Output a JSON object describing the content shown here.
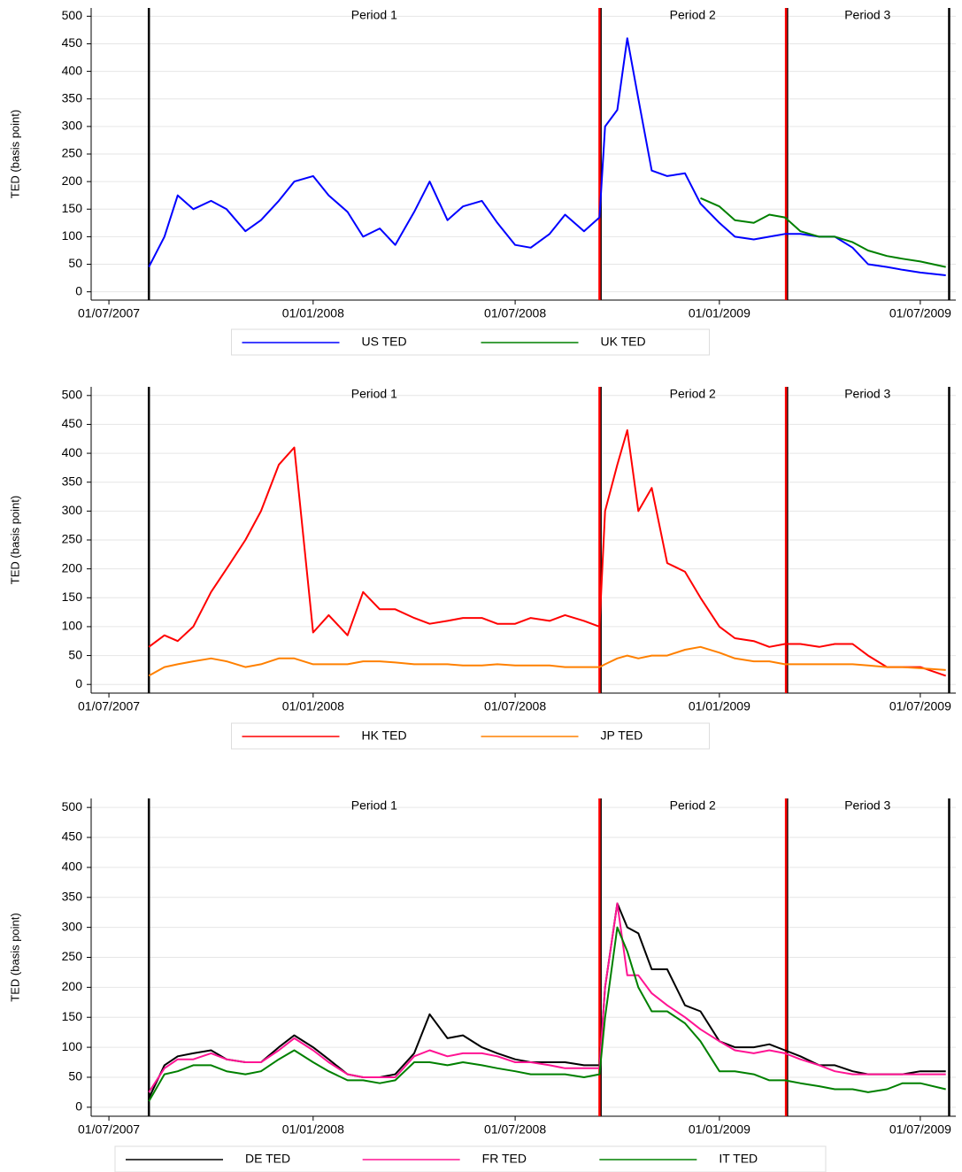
{
  "chart_data": [
    {
      "type": "line",
      "ylabel": "TED (basis point)",
      "x": [
        "2007-08-06",
        "2007-08-20",
        "2007-09-01",
        "2007-09-15",
        "2007-10-01",
        "2007-10-15",
        "2007-11-01",
        "2007-11-15",
        "2007-12-01",
        "2007-12-15",
        "2008-01-01",
        "2008-01-15",
        "2008-02-01",
        "2008-02-15",
        "2008-03-01",
        "2008-03-15",
        "2008-04-01",
        "2008-04-15",
        "2008-05-01",
        "2008-05-15",
        "2008-06-01",
        "2008-06-15",
        "2008-07-01",
        "2008-07-15",
        "2008-08-01",
        "2008-08-15",
        "2008-09-01",
        "2008-09-15",
        "2008-09-20",
        "2008-10-01",
        "2008-10-10",
        "2008-10-20",
        "2008-11-01",
        "2008-11-15",
        "2008-12-01",
        "2008-12-15",
        "2009-01-01",
        "2009-01-15",
        "2009-02-01",
        "2009-02-15",
        "2009-03-01",
        "2009-03-15",
        "2009-04-01",
        "2009-04-15",
        "2009-05-01",
        "2009-05-15",
        "2009-06-01",
        "2009-06-15",
        "2009-07-01",
        "2009-07-24"
      ],
      "series": [
        {
          "name": "US TED",
          "color": "#0000ff",
          "values": [
            45,
            100,
            175,
            150,
            165,
            150,
            110,
            130,
            165,
            200,
            210,
            175,
            145,
            100,
            115,
            85,
            145,
            200,
            130,
            155,
            165,
            125,
            85,
            80,
            105,
            140,
            110,
            135,
            300,
            330,
            460,
            350,
            220,
            210,
            215,
            160,
            125,
            100,
            95,
            100,
            105,
            105,
            100,
            100,
            80,
            50,
            45,
            40,
            35,
            30
          ]
        },
        {
          "name": "UK TED",
          "color": "#008000",
          "values": [
            null,
            null,
            null,
            null,
            null,
            null,
            null,
            null,
            null,
            null,
            null,
            null,
            null,
            null,
            null,
            null,
            null,
            null,
            null,
            null,
            null,
            null,
            null,
            null,
            null,
            null,
            null,
            null,
            null,
            null,
            null,
            null,
            null,
            null,
            null,
            170,
            155,
            130,
            125,
            140,
            135,
            110,
            100,
            100,
            90,
            75,
            65,
            60,
            55,
            45
          ]
        }
      ],
      "xlim": [
        "2007-06-15",
        "2009-08-02"
      ],
      "xticks": [
        {
          "value": "2007-07-01",
          "label": "01/07/2007"
        },
        {
          "value": "2008-01-01",
          "label": "01/01/2008"
        },
        {
          "value": "2008-07-01",
          "label": "01/07/2008"
        },
        {
          "value": "2009-01-01",
          "label": "01/01/2009"
        },
        {
          "value": "2009-07-01",
          "label": "01/07/2009"
        }
      ],
      "ylim": [
        -15,
        515
      ],
      "yticks": [
        0,
        50,
        100,
        150,
        200,
        250,
        300,
        350,
        400,
        450,
        500
      ],
      "grid": true,
      "boundaries": [
        {
          "date": "2007-08-06",
          "color": "#000000"
        },
        {
          "date": "2008-09-15",
          "color": "#ff0000"
        },
        {
          "date": "2009-03-02",
          "color": "#ff0000"
        },
        {
          "date": "2009-07-27",
          "color": "#000000"
        }
      ],
      "periods": [
        "Period 1",
        "Period 2",
        "Period 3"
      ]
    },
    {
      "type": "line",
      "ylabel": "TED (basis point)",
      "x": [
        "2007-08-06",
        "2007-08-20",
        "2007-09-01",
        "2007-09-15",
        "2007-10-01",
        "2007-10-15",
        "2007-11-01",
        "2007-11-15",
        "2007-12-01",
        "2007-12-15",
        "2008-01-01",
        "2008-01-15",
        "2008-02-01",
        "2008-02-15",
        "2008-03-01",
        "2008-03-15",
        "2008-04-01",
        "2008-04-15",
        "2008-05-01",
        "2008-05-15",
        "2008-06-01",
        "2008-06-15",
        "2008-07-01",
        "2008-07-15",
        "2008-08-01",
        "2008-08-15",
        "2008-09-01",
        "2008-09-15",
        "2008-09-20",
        "2008-10-01",
        "2008-10-10",
        "2008-10-20",
        "2008-11-01",
        "2008-11-15",
        "2008-12-01",
        "2008-12-15",
        "2009-01-01",
        "2009-01-15",
        "2009-02-01",
        "2009-02-15",
        "2009-03-01",
        "2009-03-15",
        "2009-04-01",
        "2009-04-15",
        "2009-05-01",
        "2009-05-15",
        "2009-06-01",
        "2009-06-15",
        "2009-07-01",
        "2009-07-24"
      ],
      "series": [
        {
          "name": "HK TED",
          "color": "#ff0000",
          "values": [
            65,
            85,
            75,
            100,
            160,
            200,
            250,
            300,
            380,
            410,
            90,
            120,
            85,
            160,
            130,
            130,
            115,
            105,
            110,
            115,
            115,
            105,
            105,
            115,
            110,
            120,
            110,
            100,
            300,
            380,
            440,
            300,
            340,
            210,
            195,
            150,
            100,
            80,
            75,
            65,
            70,
            70,
            65,
            70,
            70,
            50,
            30,
            30,
            30,
            15
          ]
        },
        {
          "name": "JP TED",
          "color": "#ff8000",
          "values": [
            15,
            30,
            35,
            40,
            45,
            40,
            30,
            35,
            45,
            45,
            35,
            35,
            35,
            40,
            40,
            38,
            35,
            35,
            35,
            33,
            33,
            35,
            33,
            33,
            33,
            30,
            30,
            30,
            35,
            45,
            50,
            45,
            50,
            50,
            60,
            65,
            55,
            45,
            40,
            40,
            35,
            35,
            35,
            35,
            35,
            33,
            30,
            30,
            28,
            25
          ]
        }
      ],
      "xlim": [
        "2007-06-15",
        "2009-08-02"
      ],
      "xticks": [
        {
          "value": "2007-07-01",
          "label": "01/07/2007"
        },
        {
          "value": "2008-01-01",
          "label": "01/01/2008"
        },
        {
          "value": "2008-07-01",
          "label": "01/07/2008"
        },
        {
          "value": "2009-01-01",
          "label": "01/01/2009"
        },
        {
          "value": "2009-07-01",
          "label": "01/07/2009"
        }
      ],
      "ylim": [
        -15,
        515
      ],
      "yticks": [
        0,
        50,
        100,
        150,
        200,
        250,
        300,
        350,
        400,
        450,
        500
      ],
      "grid": true,
      "boundaries": [
        {
          "date": "2007-08-06",
          "color": "#000000"
        },
        {
          "date": "2008-09-15",
          "color": "#ff0000"
        },
        {
          "date": "2009-03-02",
          "color": "#ff0000"
        },
        {
          "date": "2009-07-27",
          "color": "#000000"
        }
      ],
      "periods": [
        "Period 1",
        "Period 2",
        "Period 3"
      ]
    },
    {
      "type": "line",
      "ylabel": "TED (basis point)",
      "x": [
        "2007-08-06",
        "2007-08-20",
        "2007-09-01",
        "2007-09-15",
        "2007-10-01",
        "2007-10-15",
        "2007-11-01",
        "2007-11-15",
        "2007-12-01",
        "2007-12-15",
        "2008-01-01",
        "2008-01-15",
        "2008-02-01",
        "2008-02-15",
        "2008-03-01",
        "2008-03-15",
        "2008-04-01",
        "2008-04-15",
        "2008-05-01",
        "2008-05-15",
        "2008-06-01",
        "2008-06-15",
        "2008-07-01",
        "2008-07-15",
        "2008-08-01",
        "2008-08-15",
        "2008-09-01",
        "2008-09-15",
        "2008-09-20",
        "2008-10-01",
        "2008-10-10",
        "2008-10-20",
        "2008-11-01",
        "2008-11-15",
        "2008-12-01",
        "2008-12-15",
        "2009-01-01",
        "2009-01-15",
        "2009-02-01",
        "2009-02-15",
        "2009-03-01",
        "2009-03-15",
        "2009-04-01",
        "2009-04-15",
        "2009-05-01",
        "2009-05-15",
        "2009-06-01",
        "2009-06-15",
        "2009-07-01",
        "2009-07-24"
      ],
      "series": [
        {
          "name": "DE TED",
          "color": "#000000",
          "values": [
            15,
            70,
            85,
            90,
            95,
            80,
            75,
            75,
            100,
            120,
            100,
            80,
            55,
            50,
            50,
            55,
            90,
            155,
            115,
            120,
            100,
            90,
            80,
            75,
            75,
            75,
            70,
            70,
            200,
            340,
            300,
            290,
            230,
            230,
            170,
            160,
            110,
            100,
            100,
            105,
            95,
            85,
            70,
            70,
            60,
            55,
            55,
            55,
            60,
            60
          ]
        },
        {
          "name": "FR TED",
          "color": "#ff1493",
          "values": [
            25,
            65,
            80,
            80,
            90,
            80,
            75,
            75,
            95,
            115,
            95,
            75,
            55,
            50,
            50,
            50,
            85,
            95,
            85,
            90,
            90,
            85,
            75,
            75,
            70,
            65,
            65,
            65,
            200,
            340,
            220,
            220,
            190,
            170,
            150,
            130,
            110,
            95,
            90,
            95,
            90,
            80,
            70,
            60,
            55,
            55,
            55,
            55,
            55,
            55
          ]
        },
        {
          "name": "IT TED",
          "color": "#008000",
          "values": [
            10,
            55,
            60,
            70,
            70,
            60,
            55,
            60,
            80,
            95,
            75,
            60,
            45,
            45,
            40,
            45,
            75,
            75,
            70,
            75,
            70,
            65,
            60,
            55,
            55,
            55,
            50,
            55,
            150,
            300,
            260,
            200,
            160,
            160,
            140,
            110,
            60,
            60,
            55,
            45,
            45,
            40,
            35,
            30,
            30,
            25,
            30,
            40,
            40,
            30
          ]
        }
      ],
      "xlim": [
        "2007-06-15",
        "2009-08-02"
      ],
      "xticks": [
        {
          "value": "2007-07-01",
          "label": "01/07/2007"
        },
        {
          "value": "2008-01-01",
          "label": "01/01/2008"
        },
        {
          "value": "2008-07-01",
          "label": "01/07/2008"
        },
        {
          "value": "2009-01-01",
          "label": "01/01/2009"
        },
        {
          "value": "2009-07-01",
          "label": "01/07/2009"
        }
      ],
      "ylim": [
        -15,
        515
      ],
      "yticks": [
        0,
        50,
        100,
        150,
        200,
        250,
        300,
        350,
        400,
        450,
        500
      ],
      "grid": true,
      "boundaries": [
        {
          "date": "2007-08-06",
          "color": "#000000"
        },
        {
          "date": "2008-09-15",
          "color": "#ff0000"
        },
        {
          "date": "2009-03-02",
          "color": "#ff0000"
        },
        {
          "date": "2009-07-27",
          "color": "#000000"
        }
      ],
      "periods": [
        "Period 1",
        "Period 2",
        "Period 3"
      ]
    }
  ]
}
